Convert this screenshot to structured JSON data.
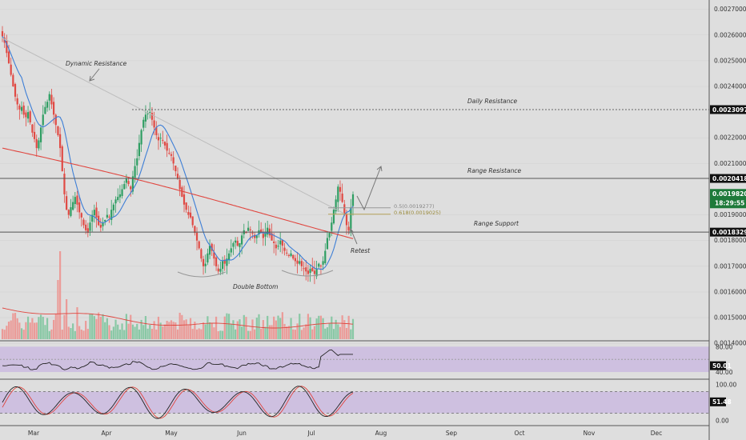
{
  "chart_data": {
    "type": "candlestick",
    "price_axis": {
      "ticks": [
        "0.0027000",
        "0.0026000",
        "0.0025000",
        "0.0024000",
        "0.0022000",
        "0.0021000",
        "0.0019000",
        "0.0018000",
        "0.0017000",
        "0.0016000",
        "0.0015000",
        "0.0014000"
      ],
      "tick_values": [
        0.0027,
        0.0026,
        0.0025,
        0.0024,
        0.0022,
        0.0021,
        0.0019,
        0.0018,
        0.0017,
        0.0016,
        0.0015,
        0.0014
      ],
      "range": [
        0.00141,
        0.00273
      ]
    },
    "time_axis": {
      "labels": [
        "Mar",
        "Apr",
        "May",
        "Jun",
        "Jul",
        "Aug",
        "Sep",
        "Oct",
        "Nov",
        "Dec"
      ]
    },
    "badges": {
      "daily_resistance": "0.0023097",
      "range_resistance": "0.0020418",
      "last_price": "0.0019820",
      "countdown": "18:29:55",
      "range_support": "0.0018329",
      "rsi_value": "50.01",
      "stoch_value": "51.48"
    },
    "badge_values": {
      "daily_resistance": 0.0023097,
      "range_resistance": 0.0020418,
      "last_price": 0.001982,
      "range_support": 0.0018329
    },
    "annotations": {
      "dynamic_resistance": "Dynamic Resistance",
      "daily_resistance": "Daily Resistance",
      "range_resistance": "Range Resistance",
      "range_support": "Range Support",
      "double_bottom": "Double Bottom",
      "retest": "Retest",
      "fib_05": "0.5(0.0019277)",
      "fib_0618": "0.618(0.0019025)"
    },
    "rsi_axis": {
      "ticks": [
        "80.00",
        "40.00"
      ],
      "tick_values": [
        80,
        40
      ],
      "range": [
        30,
        88
      ]
    },
    "stoch_axis": {
      "ticks": [
        "100.00",
        "0.00"
      ],
      "tick_values": [
        100,
        0
      ],
      "range": [
        -12,
        112
      ]
    },
    "close_series": [
      0.002595,
      0.00257,
      0.00253,
      0.00249,
      0.002445,
      0.0024,
      0.00236,
      0.00233,
      0.00231,
      0.00232,
      0.00229,
      0.00228,
      0.0023,
      0.00226,
      0.00222,
      0.002195,
      0.00216,
      0.00219,
      0.00224,
      0.00229,
      0.00232,
      0.00234,
      0.00237,
      0.00233,
      0.00229,
      0.00225,
      0.00221,
      0.00216,
      0.00207,
      0.00198,
      0.00192,
      0.0019,
      0.00193,
      0.00195,
      0.00197,
      0.00194,
      0.00191,
      0.00189,
      0.00186,
      0.00184,
      0.00183,
      0.00187,
      0.0019,
      0.00192,
      0.00189,
      0.00186,
      0.00185,
      0.00187,
      0.00188,
      0.0019,
      0.00189,
      0.00192,
      0.00194,
      0.00196,
      0.00197,
      0.00198,
      0.002,
      0.00202,
      0.00204,
      0.00202,
      0.002,
      0.00205,
      0.00209,
      0.00212,
      0.00218,
      0.00223,
      0.00227,
      0.00229,
      0.002295,
      0.0023,
      0.00227,
      0.00224,
      0.00221,
      0.00219,
      0.0022,
      0.00219,
      0.00217,
      0.00215,
      0.00214,
      0.00213,
      0.0021,
      0.00207,
      0.00204,
      0.002,
      0.00197,
      0.00194,
      0.00192,
      0.0019,
      0.00189,
      0.00186,
      0.00183,
      0.0018,
      0.00177,
      0.00173,
      0.0017,
      0.00171,
      0.00175,
      0.00178,
      0.00176,
      0.00173,
      0.0017,
      0.00168,
      0.00169,
      0.00172,
      0.00171,
      0.00173,
      0.00175,
      0.00177,
      0.00179,
      0.0018,
      0.00178,
      0.00179,
      0.00182,
      0.00184,
      0.00183,
      0.00185,
      0.00184,
      0.00183,
      0.00181,
      0.00182,
      0.00184,
      0.00183,
      0.00181,
      0.00183,
      0.00185,
      0.00182,
      0.0018,
      0.00179,
      0.00177,
      0.00178,
      0.0018,
      0.00178,
      0.00176,
      0.00175,
      0.00174,
      0.00175,
      0.00173,
      0.00172,
      0.00171,
      0.00172,
      0.0017,
      0.00169,
      0.00168,
      0.00167,
      0.00169,
      0.00168,
      0.00167,
      0.00169,
      0.00171,
      0.0017,
      0.00172,
      0.00176,
      0.00181,
      0.00183,
      0.00187,
      0.00192,
      0.00196,
      0.00201,
      0.00199,
      0.00195,
      0.0019,
      0.00186,
      0.00184,
      0.00193,
      0.00198
    ]
  }
}
